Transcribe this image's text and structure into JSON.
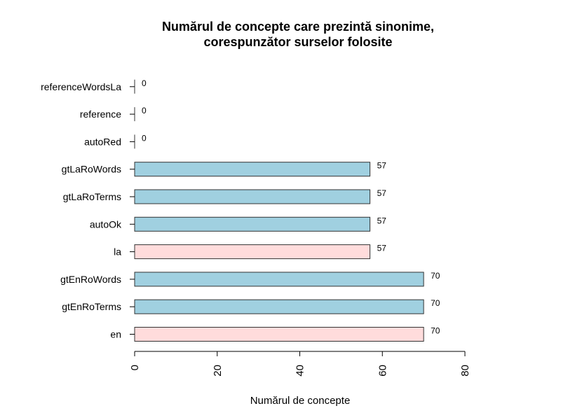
{
  "chart_data": {
    "type": "bar",
    "orientation": "horizontal",
    "title_line1": "Numărul de concepte care prezintă sinonime,",
    "title_line2": "corespunzător surselor folosite",
    "xlabel": "Numărul de concepte",
    "ylabel": "",
    "xlim": [
      0,
      80
    ],
    "x_ticks": [
      "0",
      "20",
      "40",
      "60",
      "80"
    ],
    "grid": false,
    "categories": [
      "en",
      "gtEnRoTerms",
      "gtEnRoWords",
      "la",
      "autoOk",
      "gtLaRoTerms",
      "gtLaRoWords",
      "autoRed",
      "reference",
      "referenceWordsLa"
    ],
    "values": [
      70,
      70,
      70,
      57,
      57,
      57,
      57,
      0,
      0,
      0
    ],
    "value_labels": [
      "70",
      "70",
      "70",
      "57",
      "57",
      "57",
      "57",
      "0",
      "0",
      "0"
    ],
    "bar_colors": [
      "#ffdcdc",
      "#a0d0e0",
      "#a0d0e0",
      "#ffdcdc",
      "#a0d0e0",
      "#a0d0e0",
      "#a0d0e0",
      "#a0d0e0",
      "#a0d0e0",
      "#a0d0e0"
    ]
  }
}
